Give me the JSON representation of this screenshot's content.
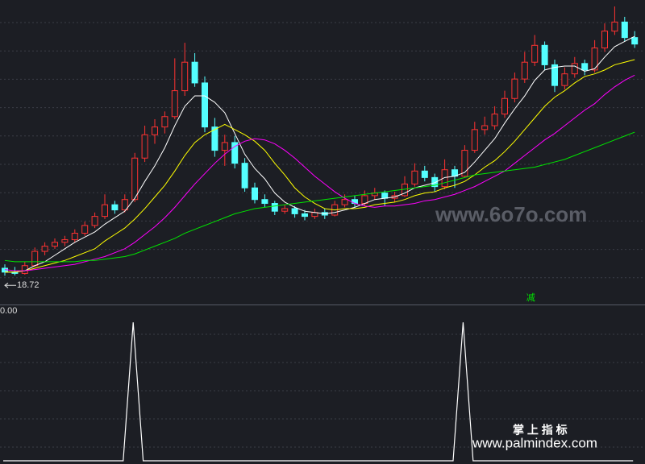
{
  "chart_data": [
    {
      "type": "candlestick",
      "up_color": "#ff3232",
      "down_color": "#54ffff",
      "ylim": [
        16.5,
        40
      ],
      "min_label": 18.72,
      "ohlc": [
        [
          19.3,
          19.6,
          18.72,
          19.0
        ],
        [
          19.0,
          19.4,
          18.75,
          18.9
        ],
        [
          18.9,
          19.8,
          18.8,
          19.5
        ],
        [
          19.5,
          20.9,
          19.4,
          20.6
        ],
        [
          20.6,
          21.3,
          20.3,
          21.0
        ],
        [
          21.0,
          21.6,
          20.8,
          21.3
        ],
        [
          21.3,
          21.8,
          21.0,
          21.5
        ],
        [
          21.5,
          22.3,
          21.3,
          22.0
        ],
        [
          22.0,
          22.9,
          21.8,
          22.6
        ],
        [
          22.6,
          23.6,
          22.4,
          23.3
        ],
        [
          23.3,
          25.0,
          23.1,
          24.2
        ],
        [
          24.2,
          24.5,
          23.5,
          23.8
        ],
        [
          23.8,
          25.0,
          23.6,
          24.6
        ],
        [
          24.6,
          28.2,
          24.4,
          27.8
        ],
        [
          27.8,
          30.3,
          27.5,
          29.6
        ],
        [
          29.6,
          30.8,
          28.9,
          30.2
        ],
        [
          30.2,
          31.4,
          29.7,
          31.0
        ],
        [
          31.0,
          35.5,
          30.8,
          33.0
        ],
        [
          33.0,
          36.7,
          32.6,
          35.2
        ],
        [
          35.2,
          35.9,
          33.3,
          33.6
        ],
        [
          33.6,
          34.1,
          29.8,
          30.2
        ],
        [
          30.2,
          30.9,
          27.9,
          28.4
        ],
        [
          28.4,
          29.6,
          27.2,
          29.0
        ],
        [
          29.0,
          29.5,
          27.0,
          27.4
        ],
        [
          27.4,
          27.8,
          25.2,
          25.5
        ],
        [
          25.5,
          25.9,
          24.3,
          24.6
        ],
        [
          24.6,
          25.0,
          24.0,
          24.3
        ],
        [
          24.3,
          24.5,
          23.4,
          23.7
        ],
        [
          23.7,
          24.2,
          23.5,
          23.9
        ],
        [
          23.9,
          24.1,
          23.2,
          23.5
        ],
        [
          23.5,
          23.8,
          23.0,
          23.3
        ],
        [
          23.3,
          23.9,
          23.1,
          23.6
        ],
        [
          23.6,
          23.9,
          23.1,
          23.4
        ],
        [
          23.4,
          24.5,
          23.3,
          24.2
        ],
        [
          24.2,
          25.0,
          24.0,
          24.6
        ],
        [
          24.6,
          24.9,
          24.0,
          24.3
        ],
        [
          24.3,
          25.3,
          24.1,
          24.9
        ],
        [
          24.9,
          25.5,
          24.6,
          25.1
        ],
        [
          25.1,
          25.3,
          24.1,
          24.7
        ],
        [
          24.7,
          25.2,
          24.4,
          24.9
        ],
        [
          24.9,
          26.4,
          24.8,
          25.8
        ],
        [
          25.8,
          27.4,
          25.6,
          26.8
        ],
        [
          26.8,
          27.2,
          26.0,
          26.3
        ],
        [
          26.3,
          26.6,
          25.2,
          25.6
        ],
        [
          25.6,
          27.7,
          25.4,
          26.9
        ],
        [
          26.9,
          27.2,
          25.5,
          26.4
        ],
        [
          26.4,
          28.8,
          26.3,
          28.4
        ],
        [
          28.4,
          30.6,
          28.2,
          30.0
        ],
        [
          30.0,
          31.0,
          29.6,
          30.3
        ],
        [
          30.3,
          31.8,
          30.0,
          31.2
        ],
        [
          31.2,
          33.0,
          30.9,
          32.4
        ],
        [
          32.4,
          34.4,
          32.1,
          33.9
        ],
        [
          33.9,
          36.0,
          33.6,
          35.2
        ],
        [
          35.2,
          37.3,
          34.9,
          36.5
        ],
        [
          36.5,
          36.8,
          34.6,
          35.0
        ],
        [
          35.0,
          35.4,
          32.9,
          33.4
        ],
        [
          33.4,
          34.8,
          33.1,
          34.3
        ],
        [
          34.3,
          35.6,
          34.0,
          35.1
        ],
        [
          35.1,
          35.4,
          34.2,
          34.6
        ],
        [
          34.6,
          36.9,
          34.4,
          36.3
        ],
        [
          36.3,
          38.2,
          36.0,
          37.6
        ],
        [
          37.6,
          39.5,
          37.3,
          38.3
        ],
        [
          38.3,
          38.7,
          36.8,
          37.1
        ],
        [
          37.1,
          37.6,
          36.3,
          36.6
        ]
      ],
      "series": [
        {
          "color": "#ffffff",
          "values": [
            19.0,
            19.0,
            19.1,
            19.5,
            19.8,
            20.3,
            20.8,
            21.3,
            21.7,
            22.1,
            22.7,
            23.2,
            23.7,
            24.7,
            26.0,
            27.2,
            28.6,
            30.3,
            31.8,
            32.6,
            32.6,
            32.1,
            31.3,
            29.7,
            28.1,
            27.0,
            26.2,
            25.1,
            24.4,
            24.0,
            23.7,
            23.6,
            23.5,
            23.6,
            23.8,
            24.0,
            24.3,
            24.6,
            24.7,
            24.8,
            25.1,
            25.5,
            25.7,
            25.9,
            26.3,
            26.4,
            26.7,
            27.5,
            28.4,
            29.3,
            30.5,
            31.6,
            32.6,
            33.8,
            34.6,
            34.8,
            34.9,
            34.9,
            34.5,
            34.7,
            35.6,
            36.4,
            36.8,
            37.2
          ]
        },
        {
          "color": "#ffff00",
          "values": [
            19.0,
            19.0,
            19.1,
            19.3,
            19.5,
            19.7,
            19.9,
            20.2,
            20.5,
            20.8,
            21.4,
            21.9,
            22.4,
            23.1,
            23.9,
            24.8,
            25.7,
            26.8,
            28.0,
            29.0,
            29.6,
            30.0,
            30.4,
            30.0,
            29.6,
            29.1,
            28.4,
            27.4,
            26.5,
            25.5,
            24.8,
            24.3,
            23.9,
            23.8,
            23.9,
            23.9,
            24.0,
            24.2,
            24.3,
            24.4,
            24.6,
            24.9,
            25.1,
            25.2,
            25.5,
            25.7,
            26.0,
            26.5,
            27.1,
            27.6,
            28.3,
            29.1,
            30.0,
            30.9,
            31.8,
            32.5,
            33.0,
            33.6,
            34.1,
            34.3,
            34.6,
            35.0,
            35.2,
            35.4
          ]
        },
        {
          "color": "#ff00ff",
          "values": [
            19.2,
            19.1,
            19.1,
            19.2,
            19.3,
            19.4,
            19.5,
            19.6,
            19.8,
            20.0,
            20.2,
            20.5,
            20.8,
            21.3,
            21.9,
            22.5,
            23.2,
            24.0,
            24.9,
            25.8,
            26.6,
            27.4,
            28.1,
            28.7,
            29.1,
            29.3,
            29.2,
            28.9,
            28.4,
            27.8,
            27.1,
            26.4,
            25.8,
            25.2,
            24.7,
            24.3,
            24.1,
            24.0,
            24.1,
            24.1,
            24.2,
            24.3,
            24.5,
            24.6,
            24.8,
            25.0,
            25.3,
            25.6,
            26.0,
            26.4,
            26.8,
            27.4,
            28.0,
            28.6,
            29.2,
            29.7,
            30.3,
            30.9,
            31.5,
            32.0,
            32.7,
            33.3,
            33.8,
            34.2
          ]
        },
        {
          "color": "#00e600",
          "values": [
            19.9,
            19.8,
            19.8,
            19.8,
            19.8,
            19.8,
            19.8,
            19.8,
            19.9,
            19.9,
            20.0,
            20.1,
            20.2,
            20.4,
            20.7,
            21.0,
            21.3,
            21.6,
            22.0,
            22.3,
            22.6,
            22.9,
            23.2,
            23.5,
            23.7,
            23.9,
            24.0,
            24.1,
            24.2,
            24.3,
            24.4,
            24.5,
            24.6,
            24.7,
            24.8,
            24.9,
            25.0,
            25.1,
            25.2,
            25.3,
            25.4,
            25.5,
            25.6,
            25.7,
            25.9,
            26.1,
            26.3,
            26.5,
            26.6,
            26.7,
            26.8,
            26.9,
            27.0,
            27.1,
            27.3,
            27.5,
            27.7,
            28.0,
            28.3,
            28.6,
            28.9,
            29.2,
            29.5,
            29.8
          ]
        }
      ],
      "annotations": [
        {
          "text": "减",
          "color": "#00e600",
          "index": 52
        }
      ]
    },
    {
      "type": "line",
      "color": "#ffffff",
      "ylim": [
        0,
        1.1
      ],
      "current": {
        "value": 0,
        "label": "0.00"
      },
      "values": [
        0,
        0,
        0,
        0,
        0,
        0,
        0,
        0,
        0,
        0,
        0,
        0,
        0,
        1,
        0,
        0,
        0,
        0,
        0,
        0,
        0,
        0,
        0,
        0,
        0,
        0,
        0,
        0,
        0,
        0,
        0,
        0,
        0,
        0,
        0,
        0,
        0,
        0,
        0,
        0,
        0,
        0,
        0,
        0,
        0,
        0,
        1,
        0,
        0,
        0,
        0,
        0,
        0,
        0,
        0,
        0,
        0,
        0,
        0,
        0,
        0,
        0,
        0,
        0
      ]
    }
  ],
  "watermarks": [
    "www.6o7o.com",
    "掌 上 指 标",
    "www.palmindex.com"
  ]
}
